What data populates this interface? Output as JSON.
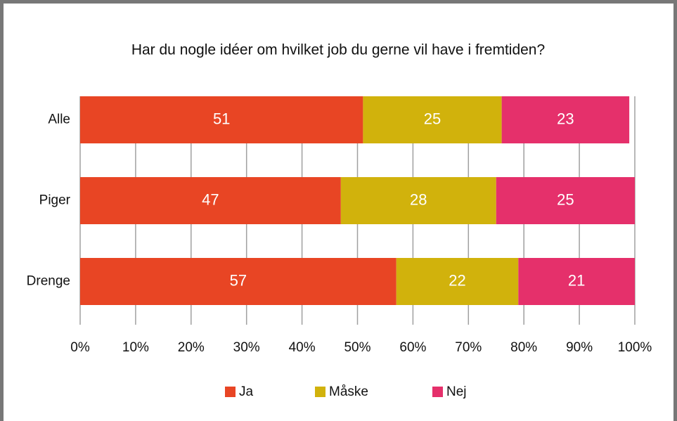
{
  "chart_data": {
    "type": "stacked-bar",
    "orientation": "horizontal",
    "title": "Har du nogle idéer om hvilket job du gerne vil have i fremtiden?",
    "categories": [
      "Alle",
      "Piger",
      "Drenge"
    ],
    "series": [
      {
        "name": "Ja",
        "color": "#e84524",
        "values": [
          51,
          47,
          57
        ]
      },
      {
        "name": "Måske",
        "color": "#d1b20c",
        "values": [
          25,
          28,
          22
        ]
      },
      {
        "name": "Nej",
        "color": "#e5306b",
        "values": [
          23,
          25,
          21
        ]
      }
    ],
    "xlim": [
      0,
      100
    ],
    "xticks": [
      {
        "value": 0,
        "label": "0%"
      },
      {
        "value": 10,
        "label": "10%"
      },
      {
        "value": 20,
        "label": "20%"
      },
      {
        "value": 30,
        "label": "30%"
      },
      {
        "value": 40,
        "label": "40%"
      },
      {
        "value": 50,
        "label": "50%"
      },
      {
        "value": 60,
        "label": "60%"
      },
      {
        "value": 70,
        "label": "70%"
      },
      {
        "value": 80,
        "label": "80%"
      },
      {
        "value": 90,
        "label": "90%"
      },
      {
        "value": 100,
        "label": "100%"
      }
    ],
    "grid": true,
    "legend": "bottom"
  }
}
